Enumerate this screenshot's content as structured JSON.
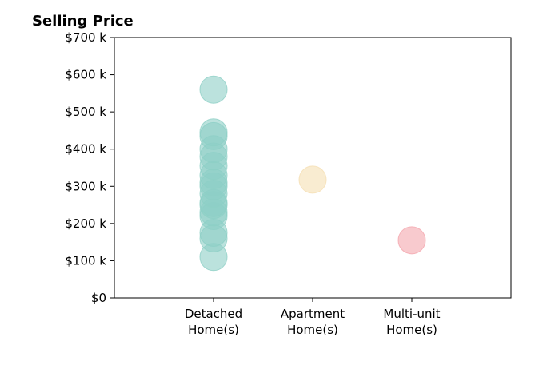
{
  "chart_data": {
    "type": "scatter",
    "title": "Selling Price",
    "xlabel": "",
    "ylabel": "",
    "categories": [
      "Detached\nHome(s)",
      "Apartment\nHome(s)",
      "Multi-unit\nHome(s)"
    ],
    "ylim": [
      0,
      700
    ],
    "yticks": [
      0,
      100,
      200,
      300,
      400,
      500,
      600,
      700
    ],
    "ytick_labels": [
      "$0",
      "$100 k",
      "$200 k",
      "$300 k",
      "$400 k",
      "$500 k",
      "$600 k",
      "$700 k"
    ],
    "grid": false,
    "series": [
      {
        "category": "Detached\nHome(s)",
        "color": "#8dcfc6",
        "values": [
          110,
          160,
          175,
          220,
          230,
          250,
          255,
          280,
          300,
          310,
          330,
          355,
          380,
          400,
          435,
          445,
          560
        ]
      },
      {
        "category": "Apartment\nHome(s)",
        "color": "#f5dfb3",
        "values": [
          318
        ]
      },
      {
        "category": "Multi-unit\nHome(s)",
        "color": "#f4a6ae",
        "values": [
          155
        ]
      }
    ]
  }
}
